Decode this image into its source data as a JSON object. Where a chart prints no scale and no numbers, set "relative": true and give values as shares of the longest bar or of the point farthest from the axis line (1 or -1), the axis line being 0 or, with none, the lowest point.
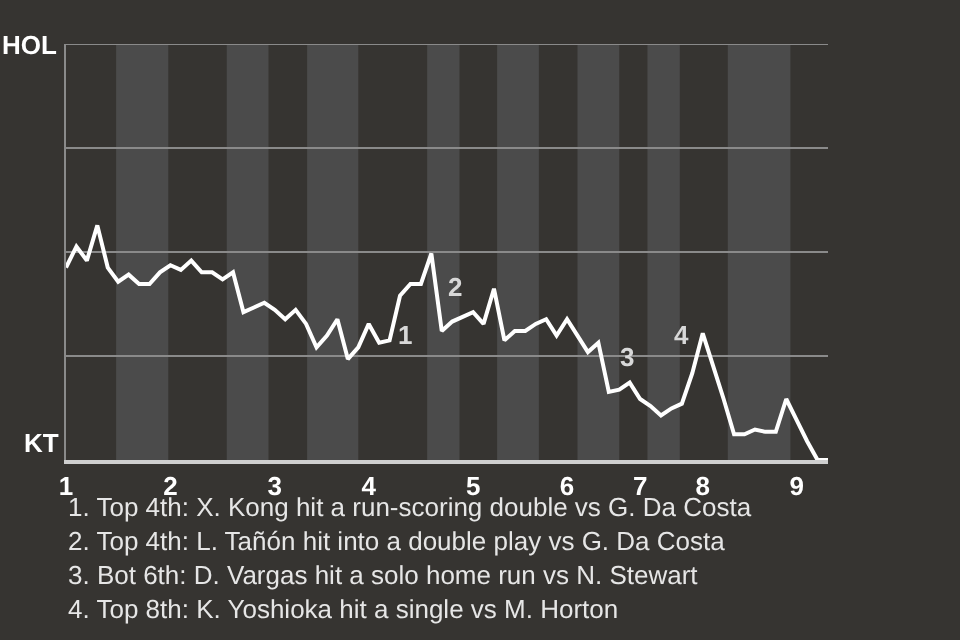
{
  "chart_data": {
    "type": "line",
    "relative": true,
    "categories": [
      "1",
      null,
      null,
      null,
      null,
      null,
      null,
      null,
      null,
      null,
      "2",
      null,
      null,
      null,
      null,
      null,
      null,
      null,
      null,
      null,
      "3",
      null,
      null,
      null,
      null,
      null,
      null,
      null,
      null,
      "4",
      null,
      null,
      null,
      null,
      null,
      null,
      null,
      null,
      null,
      "5",
      null,
      null,
      null,
      null,
      null,
      null,
      null,
      null,
      "6",
      null,
      null,
      null,
      null,
      null,
      null,
      "7",
      null,
      null,
      null,
      null,
      null,
      "8",
      null,
      null,
      null,
      null,
      null,
      null,
      null,
      null,
      "9",
      null,
      null,
      null
    ],
    "series": [
      {
        "color": "#ffffff",
        "values": [
          0.82,
          0.91,
          0.85,
          1,
          0.82,
          0.76,
          0.79,
          0.75,
          0.75,
          0.8,
          0.83,
          0.81,
          0.85,
          0.8,
          0.8,
          0.77,
          0.8,
          0.63,
          0.65,
          0.67,
          0.64,
          0.6,
          0.64,
          0.58,
          0.48,
          0.53,
          0.6,
          0.43,
          0.48,
          0.58,
          0.5,
          0.51,
          0.7,
          0.75,
          0.75,
          0.88,
          0.55,
          0.59,
          0.61,
          0.63,
          0.58,
          0.73,
          0.51,
          0.55,
          0.55,
          0.58,
          0.6,
          0.53,
          0.6,
          0.53,
          0.46,
          0.5,
          0.29,
          0.3,
          0.33,
          0.26,
          0.23,
          0.19,
          0.22,
          0.24,
          0.37,
          0.54,
          0.4,
          0.26,
          0.11,
          0.11,
          0.13,
          0.12,
          0.12,
          0.26,
          0.17,
          0.08,
          0,
          0
        ]
      }
    ],
    "ref_lines": [
      {
        "axis": "y",
        "value": 0.443,
        "color": "#8a8a8a"
      },
      {
        "axis": "y",
        "value": 0.887,
        "color": "#8a8a8a"
      },
      {
        "axis": "y",
        "value": 1.33,
        "color": "#8a8a8a"
      },
      {
        "axis": "y",
        "value": 1.773,
        "color": "#8a8a8a"
      }
    ],
    "annotations": [
      "HOL",
      "KT",
      "1",
      "2",
      "3",
      "4",
      "1. Top 4th: X. Kong hit a run-scoring double vs G. Da Costa",
      "2. Top 4th: L. Tañón hit into a double play vs G. Da Costa",
      "3. Bot 6th: D. Vargas hit a solo home run vs N. Stewart",
      "4. Top 8th: K. Yoshioka hit a single vs M. Horton"
    ]
  }
}
